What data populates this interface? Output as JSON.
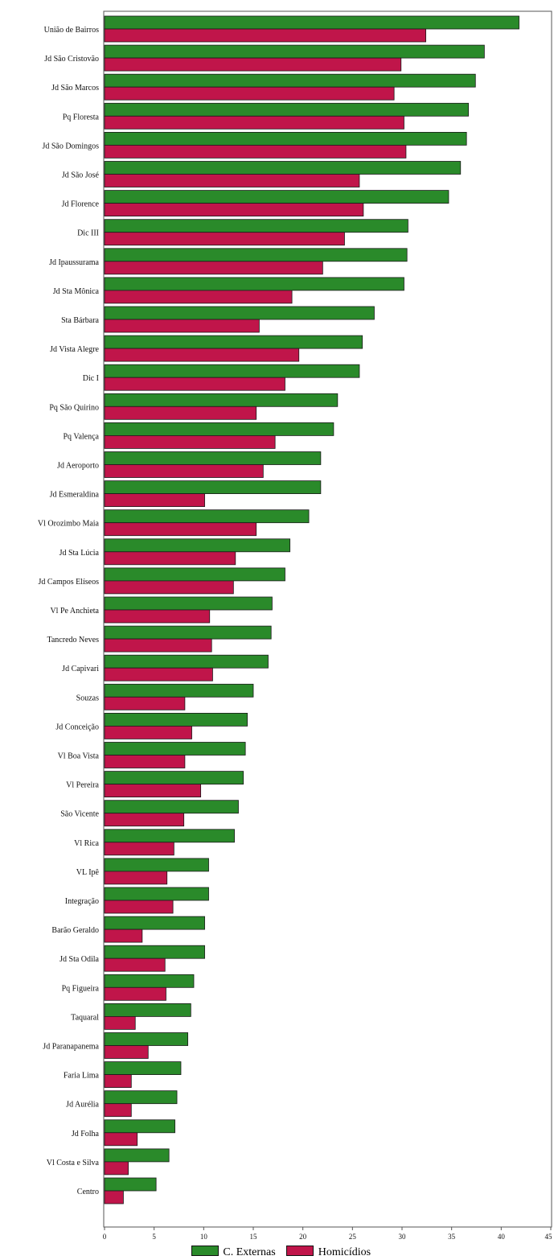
{
  "chart_data": {
    "type": "bar",
    "orientation": "horizontal",
    "categories": [
      "União de Bairros",
      "Jd São Cristovão",
      "Jd São Marcos",
      "Pq Floresta",
      "Jd São Domingos",
      "Jd São José",
      "Jd Florence",
      "Dic III",
      "Jd Ipaussurama",
      "Jd Sta Mônica",
      "Sta Bárbara",
      "Jd Vista Alegre",
      "Dic I",
      "Pq São Quirino",
      "Pq Valença",
      "Jd Aeroporto",
      "Jd Esmeraldina",
      "Vl Orozimbo Maia",
      "Jd Sta Lúcia",
      "Jd Campos Elíseos",
      "Vl Pe Anchieta",
      "Tancredo Neves",
      "Jd Capivari",
      "Souzas",
      "Jd Conceição",
      "Vl Boa Vista",
      "Vl Pereira",
      "São Vicente",
      "Vl Rica",
      "VL Ipê",
      "Integração",
      "Barão Geraldo",
      "Jd Sta Odila",
      "Pq Figueira",
      "Taquaral",
      "Jd Paranapanema",
      "Faria Lima",
      "Jd Aurélia",
      "Jd Folha",
      "Vl Costa e Silva",
      "Centro"
    ],
    "series": [
      {
        "name": "C. Externas",
        "color": "#2a8a2a",
        "values": [
          41.8,
          38.3,
          37.4,
          36.7,
          36.5,
          35.9,
          34.7,
          30.6,
          30.5,
          30.2,
          27.2,
          26.0,
          25.7,
          23.5,
          23.1,
          21.8,
          21.8,
          20.6,
          18.7,
          18.2,
          16.9,
          16.8,
          16.5,
          15.0,
          14.4,
          14.2,
          14.0,
          13.5,
          13.1,
          10.5,
          10.5,
          10.1,
          10.1,
          9.0,
          8.7,
          8.4,
          7.7,
          7.3,
          7.1,
          6.5,
          5.2
        ]
      },
      {
        "name": "Homicídios",
        "color": "#c0154a",
        "values": [
          32.4,
          29.9,
          29.2,
          30.2,
          30.4,
          25.7,
          26.1,
          24.2,
          22.0,
          18.9,
          15.6,
          19.6,
          18.2,
          15.3,
          17.2,
          16.0,
          10.1,
          15.3,
          13.2,
          13.0,
          10.6,
          10.8,
          10.9,
          8.1,
          8.8,
          8.1,
          9.7,
          8.0,
          7.0,
          6.3,
          6.9,
          3.8,
          6.1,
          6.2,
          3.1,
          4.4,
          2.7,
          2.7,
          3.3,
          2.4,
          1.9
        ]
      }
    ],
    "xlim": [
      0,
      45
    ],
    "xticks": [
      0,
      5,
      10,
      15,
      20,
      25,
      30,
      35,
      40,
      45
    ],
    "grid": false,
    "legend": "bottom-center",
    "title": "",
    "xlabel": "",
    "ylabel": ""
  },
  "legend": {
    "item1": "C. Externas",
    "item2": "Homicídios"
  }
}
